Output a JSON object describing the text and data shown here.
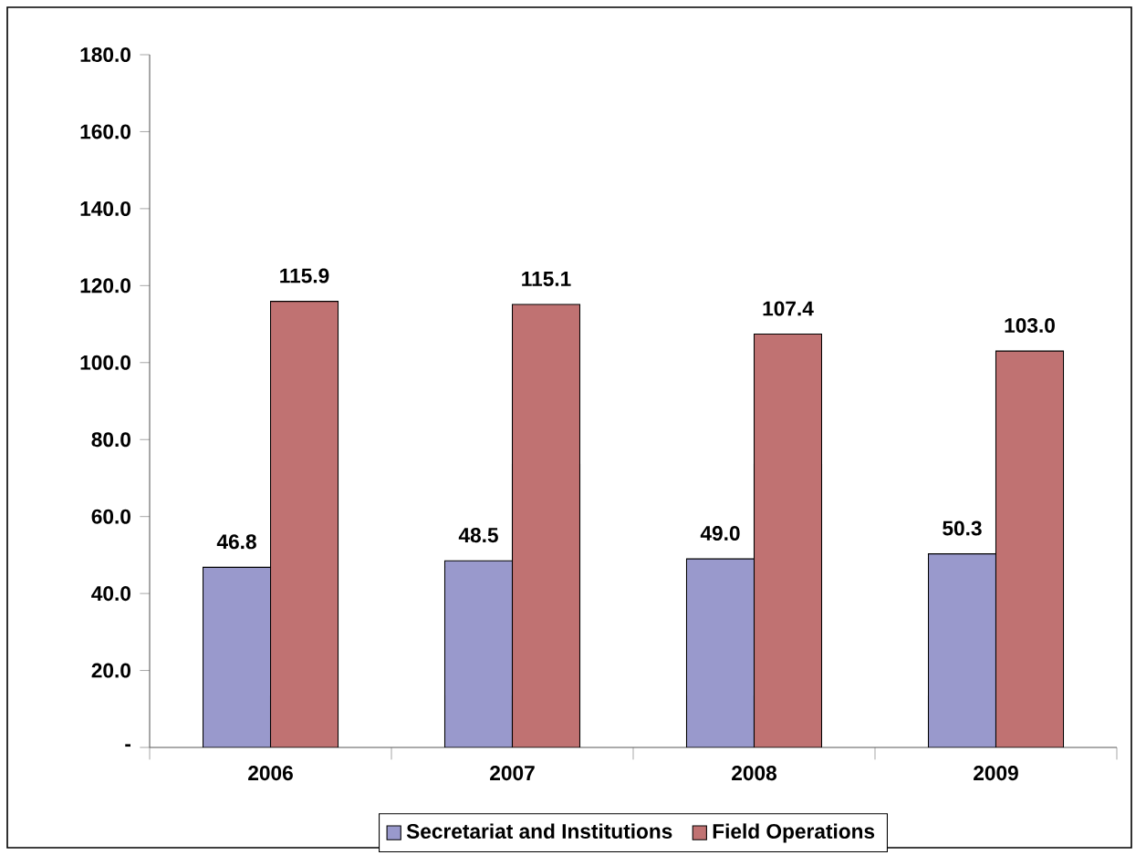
{
  "chart_data": {
    "type": "bar",
    "categories": [
      "2006",
      "2007",
      "2008",
      "2009"
    ],
    "series": [
      {
        "name": "Secretariat and Institutions",
        "color": "#9999cc",
        "values": [
          46.8,
          48.5,
          49.0,
          50.3
        ],
        "value_labels": [
          "46.8",
          "48.5",
          "49.0",
          "50.3"
        ]
      },
      {
        "name": "Field Operations",
        "color": "#c07272",
        "values": [
          115.9,
          115.1,
          107.4,
          103.0
        ],
        "value_labels": [
          "115.9",
          "115.1",
          "107.4",
          "103.0"
        ]
      }
    ],
    "ylim": [
      0,
      180
    ],
    "yticks": [
      {
        "value": 0,
        "label": "-"
      },
      {
        "value": 20,
        "label": "20.0"
      },
      {
        "value": 40,
        "label": "40.0"
      },
      {
        "value": 60,
        "label": "60.0"
      },
      {
        "value": 80,
        "label": "80.0"
      },
      {
        "value": 100,
        "label": "100.0"
      },
      {
        "value": 120,
        "label": "120.0"
      },
      {
        "value": 140,
        "label": "140.0"
      },
      {
        "value": 160,
        "label": "160.0"
      },
      {
        "value": 180,
        "label": "180.0"
      }
    ],
    "legend": "bottom"
  }
}
